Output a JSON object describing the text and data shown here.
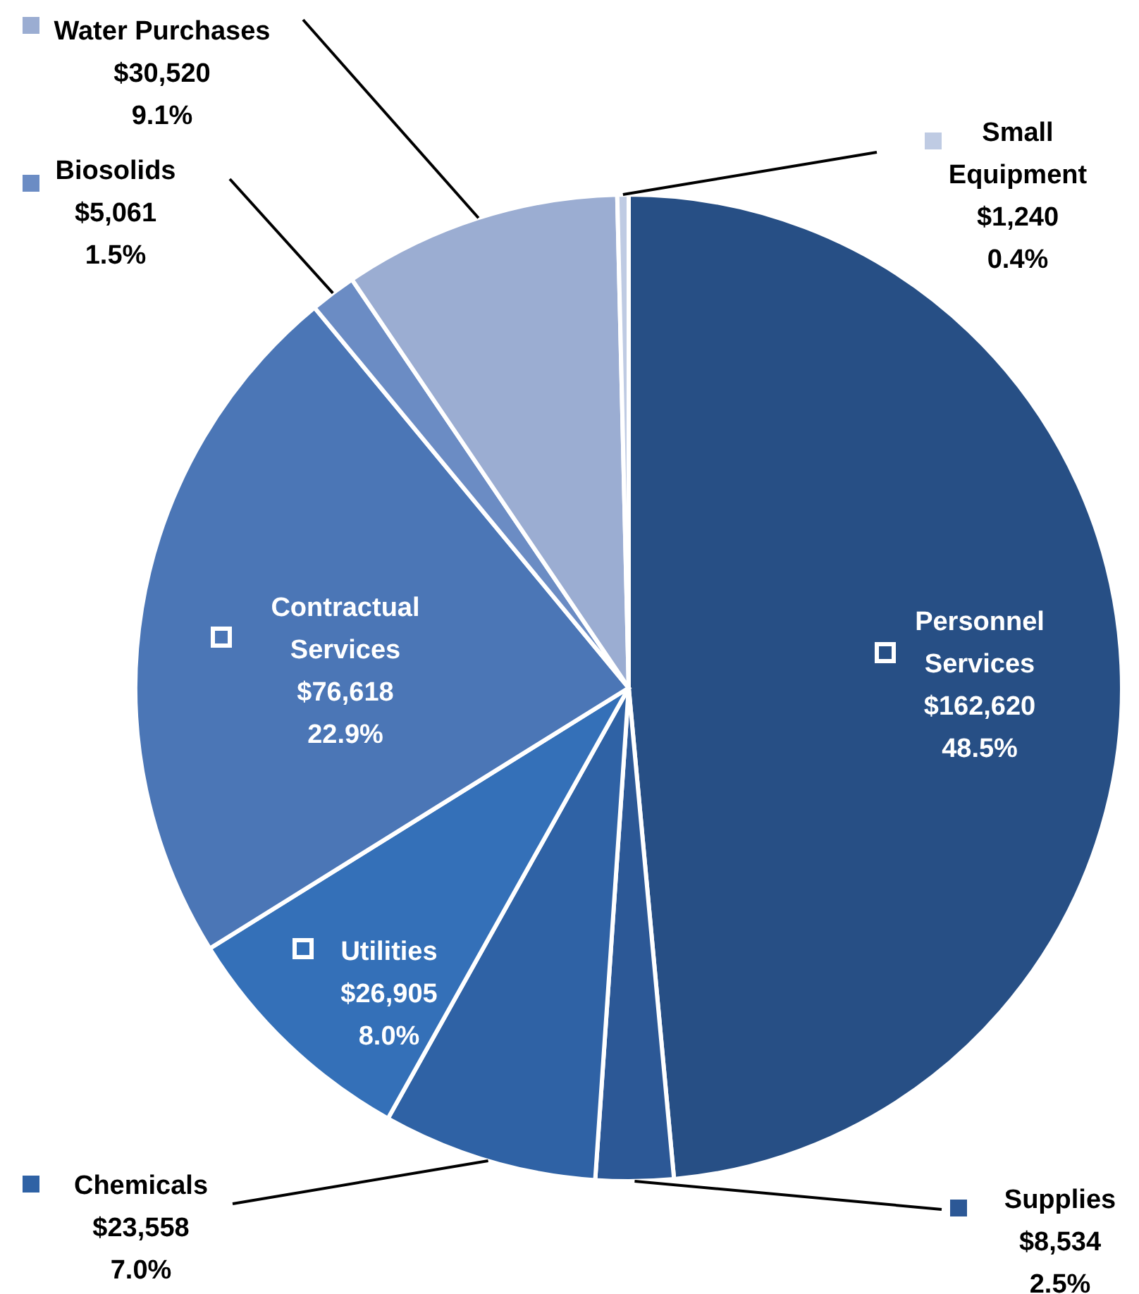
{
  "chart_data": {
    "type": "pie",
    "categories": [
      "Personnel Services",
      "Supplies",
      "Chemicals",
      "Utilities",
      "Contractual Services",
      "Biosolids",
      "Water Purchases",
      "Small Equipment"
    ],
    "values": [
      162620,
      8534,
      23558,
      26905,
      76618,
      5061,
      30520,
      1240
    ],
    "value_labels": [
      "$162,620\n48.5%",
      "$8,534\n2.5%",
      "$23,558\n7.0%",
      "$26,905\n8.0%",
      "$76,618\n22.9%",
      "$5,061\n1.5%",
      "$30,520\n9.1%",
      "$1,240\n0.4%"
    ],
    "colors": [
      "#274f85",
      "#2c5896",
      "#2f62a5",
      "#3470b8",
      "#4b76b6",
      "#6b8cc4",
      "#9badd2",
      "#bfcbe3"
    ],
    "legend": "left"
  }
}
